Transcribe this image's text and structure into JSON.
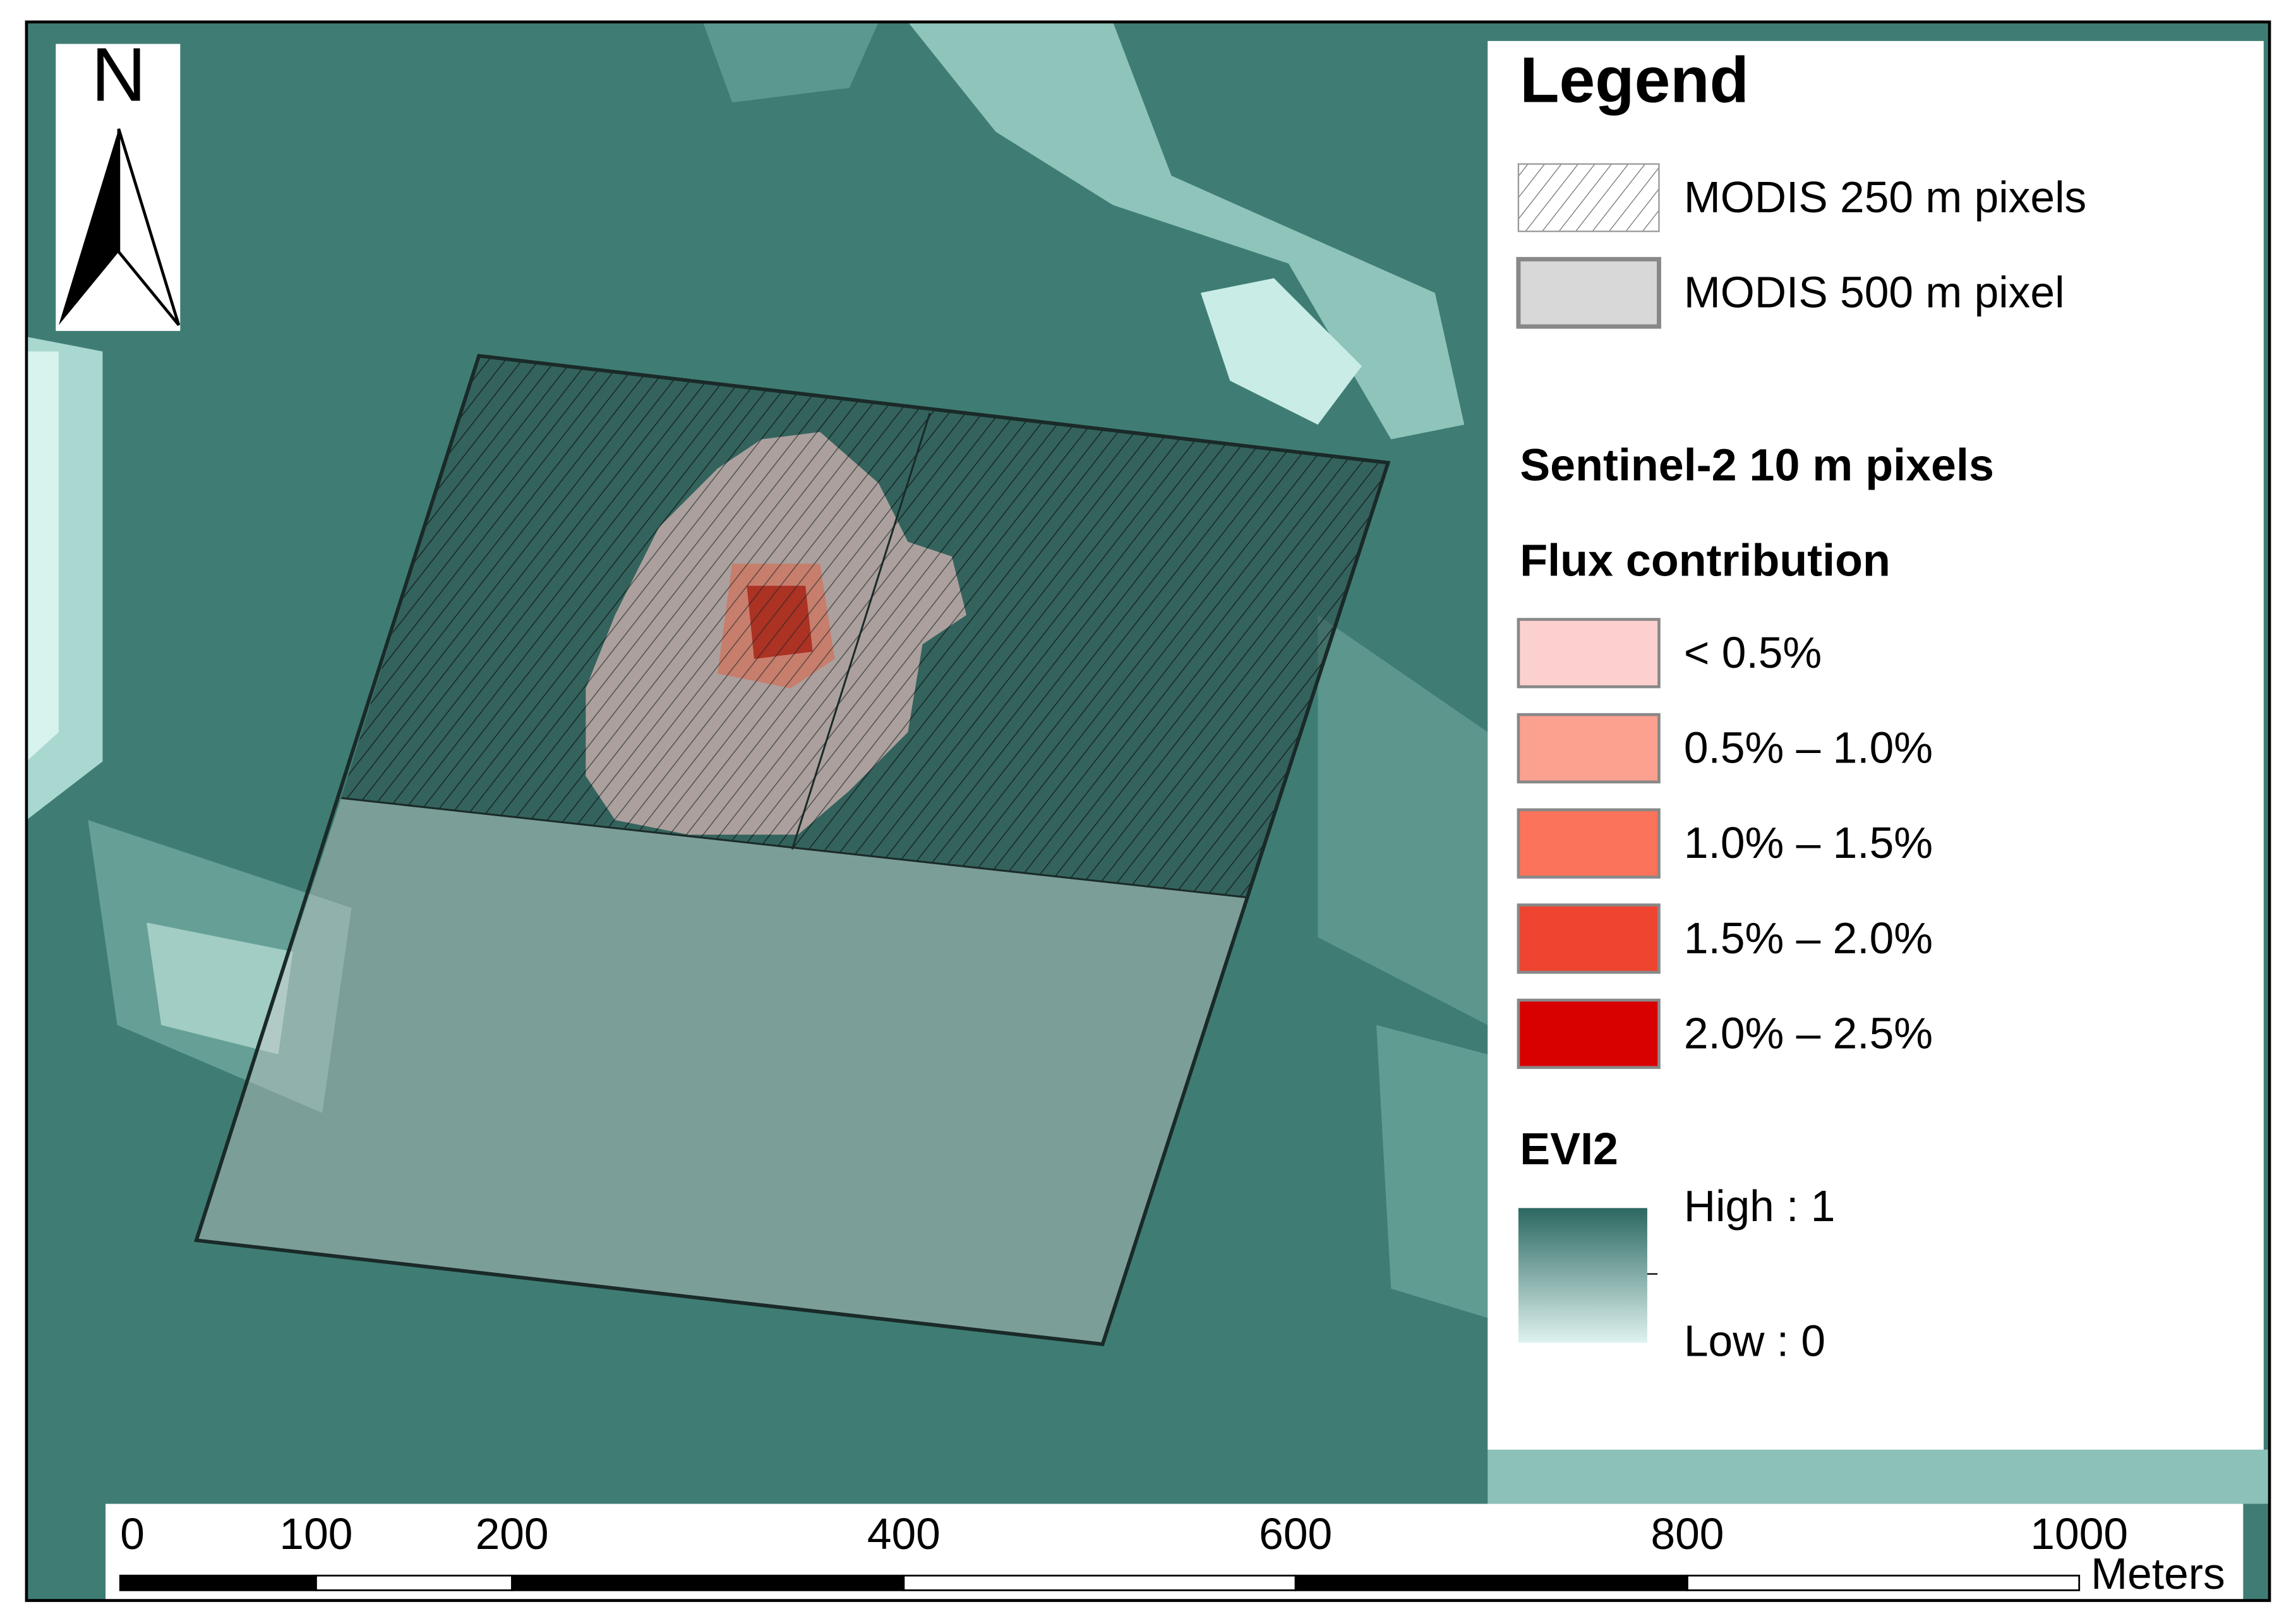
{
  "north_arrow": {
    "label": "N"
  },
  "legend": {
    "title": "Legend",
    "modis_250": "MODIS 250 m pixels",
    "modis_500": "MODIS 500 m pixel",
    "sentinel_title": "Sentinel-2 10 m pixels",
    "flux_title": "Flux contribution",
    "flux_classes": [
      {
        "label": "< 0.5%",
        "color": "#fdd0d0"
      },
      {
        "label": "0.5% – 1.0%",
        "color": "#fca08f"
      },
      {
        "label": "1.0% – 1.5%",
        "color": "#fa735a"
      },
      {
        "label": "1.5% – 2.0%",
        "color": "#ee4430"
      },
      {
        "label": "2.0% – 2.5%",
        "color": "#d90000"
      }
    ],
    "evi_title": "EVI2",
    "evi_high": "High : 1",
    "evi_low": "Low : 0"
  },
  "scale_bar": {
    "ticks": [
      0,
      100,
      200,
      400,
      600,
      800,
      1000
    ],
    "unit": "Meters"
  }
}
